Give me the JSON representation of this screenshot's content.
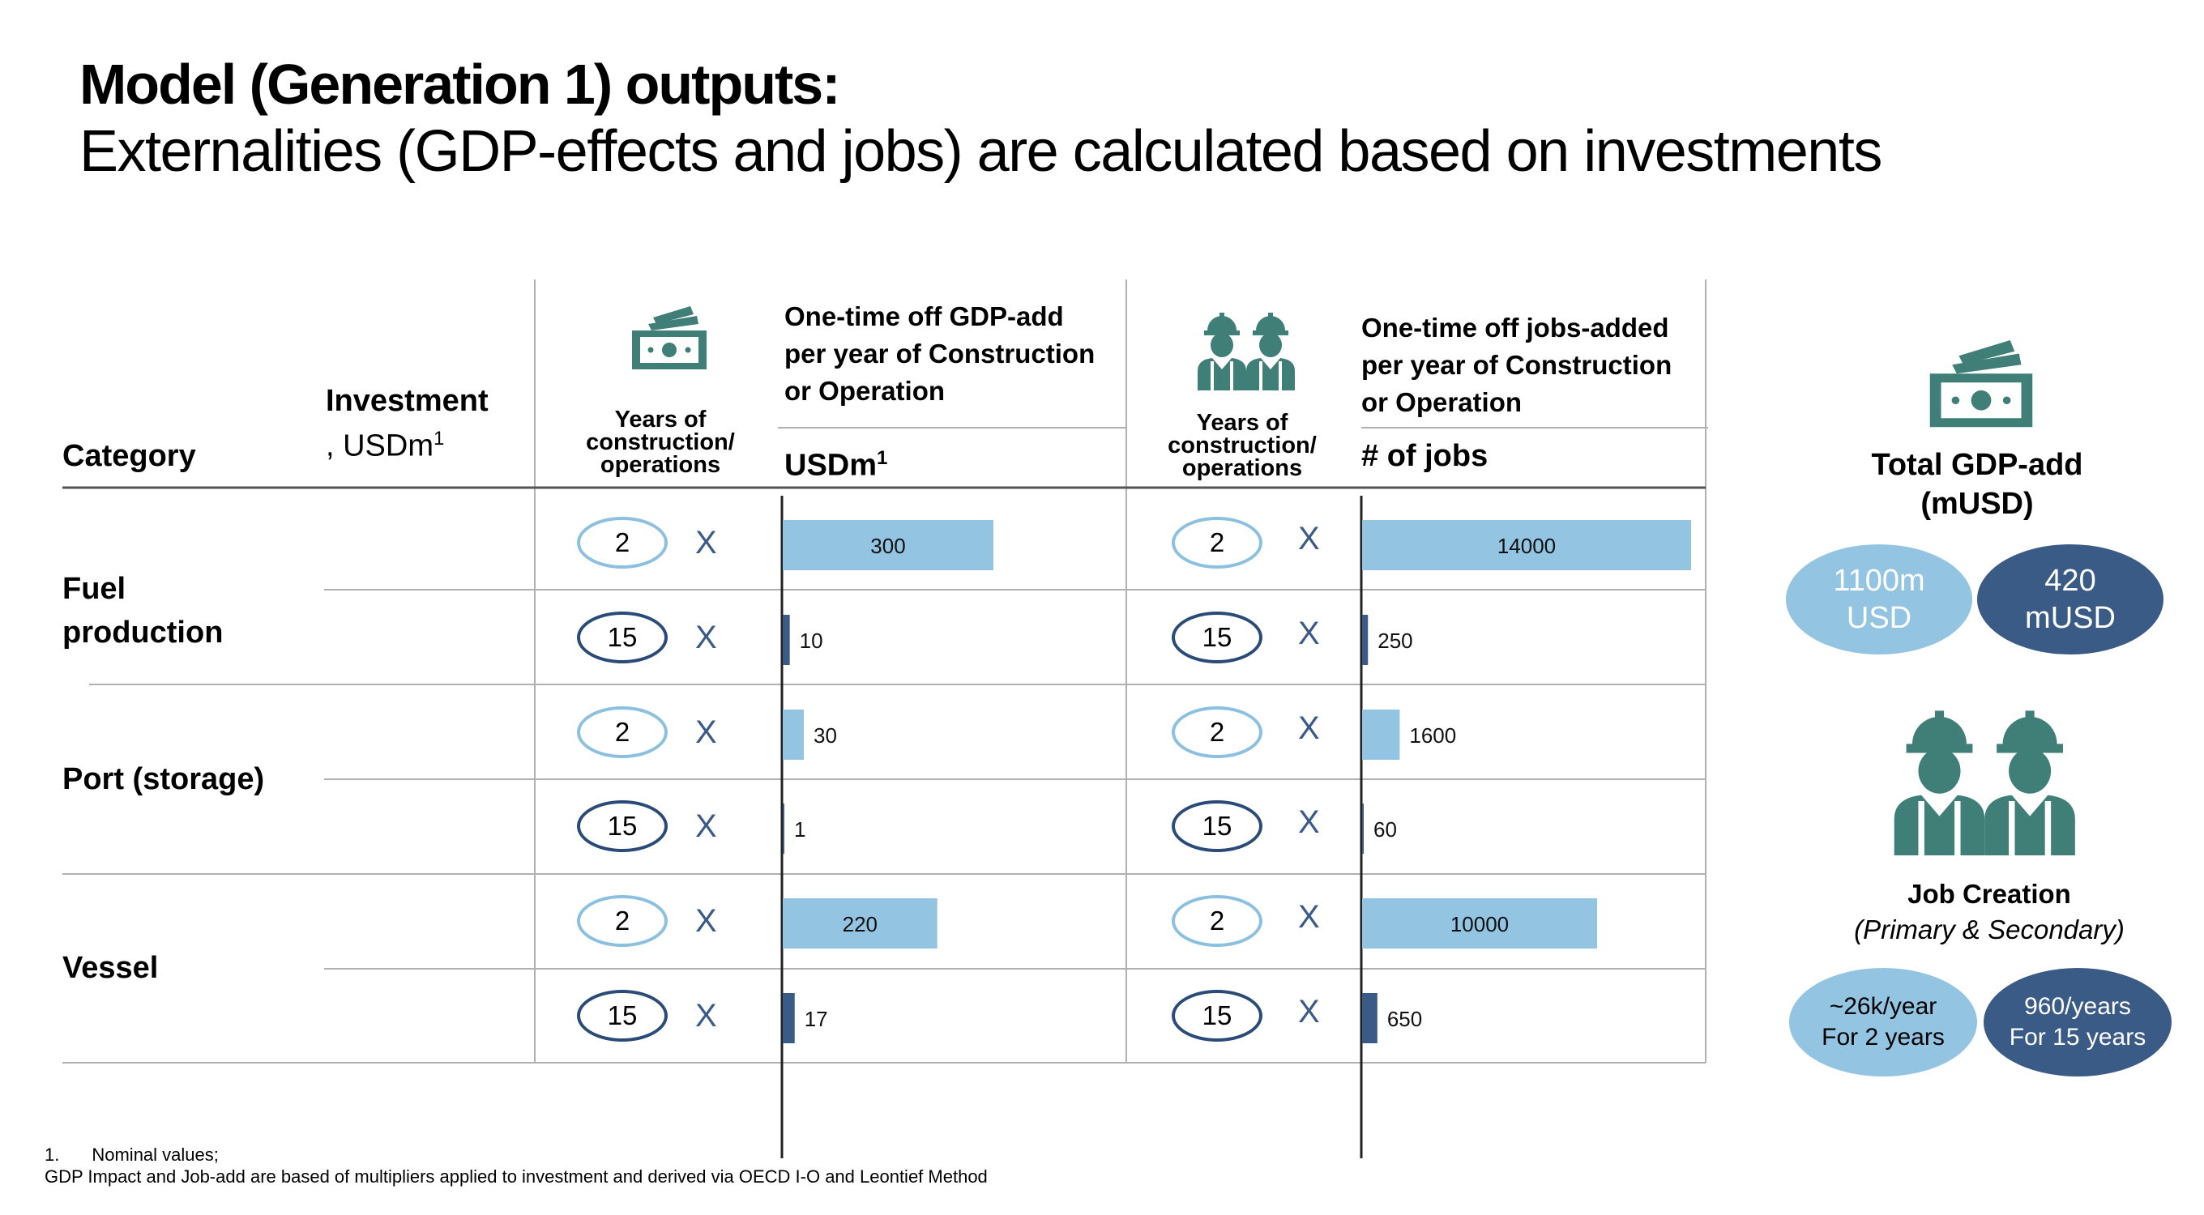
{
  "title": {
    "line1": "Model (Generation 1) outputs:",
    "line2": "Externalities (GDP-effects and jobs) are calculated based on investments"
  },
  "table_headers": {
    "category": "Category",
    "investment": "Investment",
    "investment_unit": ", USDm",
    "investment_unit_sup": "1",
    "years_gdp_line1": "Years of",
    "years_gdp_line2": "construction/",
    "years_gdp_line3": "operations",
    "gdp_desc_line1": "One-time off GDP-add",
    "gdp_desc_line2": "per year of Construction",
    "gdp_desc_line3": "or Operation",
    "gdp_unit": "USDm",
    "gdp_unit_sup": "1",
    "years_jobs_line1": "Years of",
    "years_jobs_line2": "construction/",
    "years_jobs_line3": "operations",
    "jobs_desc_line1": "One-time off jobs-added",
    "jobs_desc_line2": "per year of Construction",
    "jobs_desc_line3": "or Operation",
    "jobs_unit": "# of jobs"
  },
  "categories": [
    {
      "line1": "Fuel",
      "line2": "production"
    },
    {
      "line1": "Port (storage)",
      "line2": ""
    },
    {
      "line1": "Vessel",
      "line2": ""
    }
  ],
  "multiplier_symbol": "X",
  "years": [
    "2",
    "15",
    "2",
    "15",
    "2",
    "15"
  ],
  "side_panel": {
    "gdp_title_line1": "Total GDP-add",
    "gdp_title_line2": "(mUSD)",
    "gdp_circle1_line1": "1100m",
    "gdp_circle1_line2": "USD",
    "gdp_circle2_line1": "420",
    "gdp_circle2_line2": "mUSD",
    "jobs_title_line1": "Job Creation",
    "jobs_title_line2": "(Primary & Secondary)",
    "jobs_circle1_line1": "~26k/year",
    "jobs_circle1_line2": "For 2 years",
    "jobs_circle2_line1": "960/years",
    "jobs_circle2_line2": "For 15 years"
  },
  "footnotes": {
    "line1_num": "1.",
    "line1_text": "Nominal values;",
    "line2": "GDP Impact and Job-add are based of multipliers applied to investment and derived via OECD I-O and Leontief Method"
  },
  "colors": {
    "light_bar": "#93c4e2",
    "dark_bar": "#3a5b86",
    "icon_teal": "#3f7f78",
    "grid_line": "#b0b0b0"
  },
  "chart_data": [
    {
      "type": "bar",
      "orientation": "horizontal",
      "title": "One-time off GDP-add per year of Construction or Operation",
      "xlabel": "USDm",
      "categories": [
        "Fuel production (2 years)",
        "Fuel production (15 years)",
        "Port (storage) (2 years)",
        "Port (storage) (15 years)",
        "Vessel (2 years)",
        "Vessel (15 years)"
      ],
      "values": [
        300,
        10,
        30,
        1,
        220,
        17
      ],
      "labels": [
        "300",
        "10",
        "30",
        "1",
        "220",
        "17"
      ],
      "shade": [
        "light",
        "dark",
        "light",
        "dark",
        "light",
        "dark"
      ],
      "xlim": [
        0,
        300
      ]
    },
    {
      "type": "bar",
      "orientation": "horizontal",
      "title": "One-time off jobs-added per year of Construction or Operation",
      "xlabel": "# of jobs",
      "categories": [
        "Fuel production (2 years)",
        "Fuel production (15 years)",
        "Port (storage) (2 years)",
        "Port (storage) (15 years)",
        "Vessel (2 years)",
        "Vessel (15 years)"
      ],
      "values": [
        14000,
        250,
        1600,
        60,
        10000,
        650
      ],
      "labels": [
        "14000",
        "250",
        "1600",
        "60",
        "10000",
        "650"
      ],
      "shade": [
        "light",
        "dark",
        "light",
        "dark",
        "light",
        "dark"
      ],
      "xlim": [
        0,
        14000
      ]
    }
  ]
}
